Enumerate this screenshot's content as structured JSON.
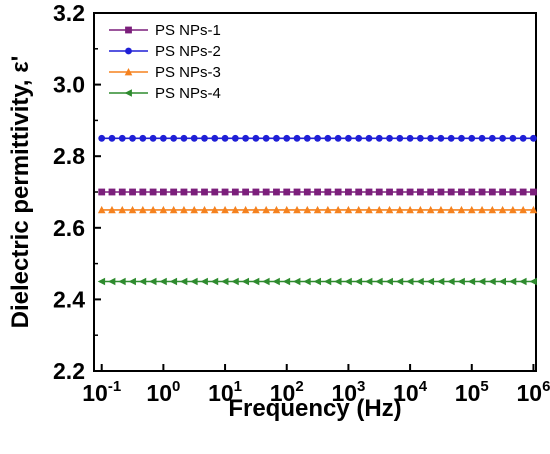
{
  "chart_data": {
    "type": "line",
    "xlabel": "Frequency (Hz)",
    "ylabel": "Dielectric permittivity, ε'",
    "xscale": "log",
    "xlim": [
      0.075,
      1100000
    ],
    "ylim": [
      2.2,
      3.2
    ],
    "grid": false,
    "legend_placement": "top-left",
    "x_ticks": [
      {
        "value": 0.1,
        "base": "10",
        "exp": "-1"
      },
      {
        "value": 1,
        "base": "10",
        "exp": "0"
      },
      {
        "value": 10,
        "base": "10",
        "exp": "1"
      },
      {
        "value": 100,
        "base": "10",
        "exp": "2"
      },
      {
        "value": 1000,
        "base": "10",
        "exp": "3"
      },
      {
        "value": 10000,
        "base": "10",
        "exp": "4"
      },
      {
        "value": 100000,
        "base": "10",
        "exp": "5"
      },
      {
        "value": 1000000,
        "base": "10",
        "exp": "6"
      }
    ],
    "y_ticks": [
      "2.2",
      "2.4",
      "2.6",
      "2.8",
      "3.0",
      "3.2"
    ],
    "points_per_series": 43,
    "x_range": [
      0.1,
      1000000
    ],
    "series": [
      {
        "name": "PS NPs-1",
        "value": 2.7,
        "color": "#7b1f7b",
        "marker": "square"
      },
      {
        "name": "PS NPs-2",
        "value": 2.85,
        "color": "#1f1fd6",
        "marker": "circle"
      },
      {
        "name": "PS NPs-3",
        "value": 2.65,
        "color": "#f5821f",
        "marker": "triangle-up"
      },
      {
        "name": "PS NPs-4",
        "value": 2.45,
        "color": "#2e8b2e",
        "marker": "triangle-left"
      }
    ]
  }
}
